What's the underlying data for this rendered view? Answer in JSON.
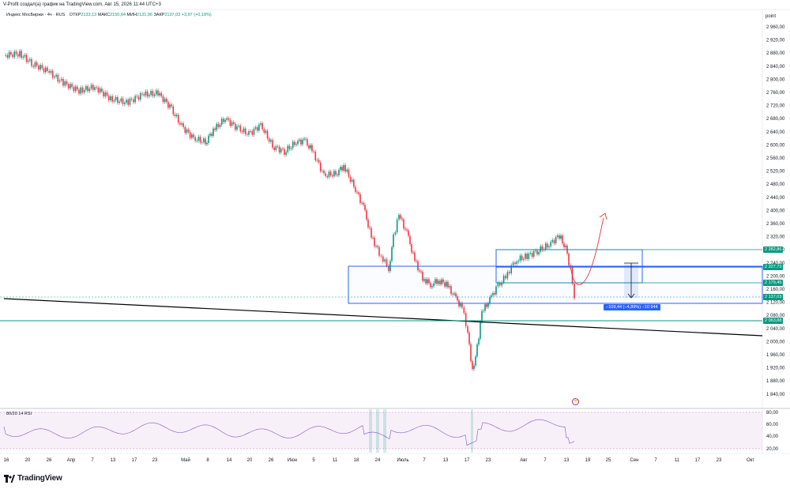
{
  "credit": "V-Profit создал(а) график на TradingView.com, Авг 15, 2026 11:44 UTC+3",
  "legend": {
    "symbol": "Индекс МосБиржи · 4ч · RUS",
    "open_label": "ОТКР",
    "open": "2133,13",
    "high_label": "МАКС",
    "high": "2150,64",
    "low_label": "МИН",
    "low": "2131,96",
    "close_label": "ЗАКР",
    "close": "2137,03",
    "change": "+3,97 (+0,19%)"
  },
  "price_axis": {
    "unit": "point",
    "labels": [
      "2 960,00",
      "2 920,00",
      "2 880,00",
      "2 840,00",
      "2 800,00",
      "2 760,00",
      "2 720,00",
      "2 680,00",
      "2 640,00",
      "2 600,00",
      "2 560,00",
      "2 520,00",
      "2 480,00",
      "2 440,00",
      "2 400,00",
      "2 360,00",
      "2 320,00",
      "2 280,00",
      "2 240,00",
      "2 200,00",
      "2 160,00",
      "2 120,00",
      "2 080,00",
      "2 040,00",
      "2 000,00",
      "1 960,00",
      "1 920,00",
      "1 880,00",
      "1 840,00"
    ]
  },
  "price_badges": [
    {
      "value": "2 282,86",
      "color": "#089981"
    },
    {
      "value": "2 227,73",
      "color": "#089981"
    },
    {
      "value": "2 179,45",
      "color": "#089981"
    },
    {
      "value": "2 137,03",
      "color": "#089981"
    },
    {
      "value": "2 063,88",
      "color": "#089981"
    }
  ],
  "measure_label": "−109,44 (−4,89%) −10 944",
  "rsi": {
    "title": "80/20 14 RSI",
    "labels": [
      "80,00",
      "60,00",
      "40,00",
      "20,00"
    ]
  },
  "time_axis": {
    "labels": [
      "16",
      "20",
      "26",
      "Апр",
      "7",
      "13",
      "17",
      "23",
      "Май",
      "8",
      "14",
      "20",
      "26",
      "Июн",
      "5",
      "11",
      "18",
      "24",
      "Июль",
      "7",
      "13",
      "17",
      "23",
      "Авг",
      "7",
      "13",
      "19",
      "25",
      "Сен",
      "7",
      "11",
      "17",
      "23",
      "Окт"
    ]
  },
  "brand": "TradingView",
  "colors": {
    "up": "#089981",
    "down": "#f23645",
    "rectangle": "#2962ff",
    "level": "#089981",
    "trendline": "#000000",
    "rsi_band": "#9c27b0",
    "forecast_arrow": "#e53935"
  }
}
